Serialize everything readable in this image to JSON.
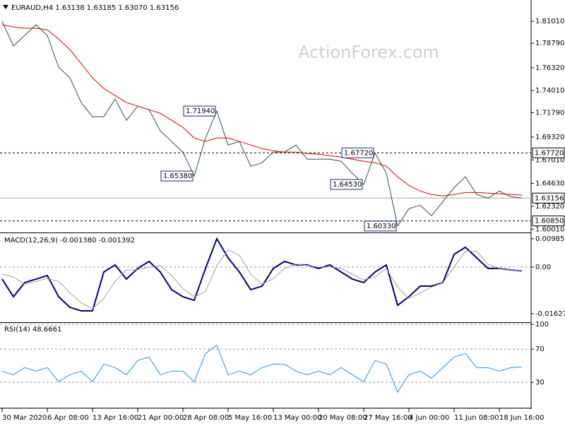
{
  "chart_data": [
    {
      "type": "line",
      "title": "EURAUD,H4  1.63138 1.63185 1.63070 1.63156",
      "watermark": "ActionForex.com",
      "categories": [
        "30 Mar 2020",
        null,
        null,
        null,
        "6 Apr 08:00",
        null,
        null,
        null,
        "13 Apr 16:00",
        null,
        null,
        null,
        "21 Apr 00:00",
        null,
        null,
        null,
        "28 Apr 08:00",
        null,
        null,
        null,
        "5 May 16:00",
        null,
        null,
        null,
        "13 May 00:00",
        null,
        null,
        null,
        "20 May 08:00",
        null,
        null,
        null,
        "27 May 16:00",
        null,
        null,
        null,
        "4 Jun 00:00",
        null,
        null,
        null,
        "11 Jun 08:00",
        null,
        null,
        null,
        "18 Jun 16:00",
        null,
        null
      ],
      "series": [
        {
          "color": "#2f4f4f",
          "values": [
            1.8101,
            1.7851,
            1.7958,
            1.8065,
            1.7958,
            1.7637,
            1.753,
            1.728,
            1.7137,
            1.7137,
            1.7315,
            1.7101,
            1.7244,
            1.7208,
            1.6994,
            1.6887,
            1.678,
            1.6538,
            1.6922,
            1.7194,
            1.6851,
            1.6887,
            1.6637,
            1.6672,
            1.678,
            1.678,
            1.6851,
            1.6708,
            1.6708,
            1.6708,
            1.6687,
            1.6565,
            1.6453,
            1.6772,
            1.6565,
            1.6033,
            1.6208,
            1.6244,
            1.6137,
            1.628,
            1.6422,
            1.653,
            1.6351,
            1.6315,
            1.6387,
            1.633,
            1.63156
          ]
        },
        {
          "color": "#e00000",
          "values": [
            1.8065,
            1.8044,
            1.803,
            1.803,
            1.8015,
            1.7922,
            1.7815,
            1.7672,
            1.753,
            1.7422,
            1.7351,
            1.728,
            1.7244,
            1.7208,
            1.7172,
            1.7101,
            1.703,
            1.6922,
            1.6887,
            1.6922,
            1.6922,
            1.6887,
            1.6851,
            1.6815,
            1.6794,
            1.678,
            1.678,
            1.6765,
            1.6758,
            1.6744,
            1.673,
            1.6708,
            1.6687,
            1.6672,
            1.6637,
            1.653,
            1.6444,
            1.6387,
            1.6351,
            1.6337,
            1.6351,
            1.6372,
            1.6372,
            1.6365,
            1.6358,
            1.6351,
            1.6344
          ]
        }
      ],
      "ylim": [
        1.5975,
        1.828
      ],
      "yticks": [
        {
          "value": 1.8101,
          "label": "1.81010"
        },
        {
          "value": 1.7879,
          "label": "1.78790"
        },
        {
          "value": 1.7632,
          "label": "1.76320"
        },
        {
          "value": 1.7401,
          "label": "1.74010"
        },
        {
          "value": 1.7179,
          "label": "1.71790"
        },
        {
          "value": 1.6932,
          "label": "1.69320"
        },
        {
          "value": 1.6701,
          "label": "1.67010"
        },
        {
          "value": 1.6463,
          "label": "1.64630"
        },
        {
          "value": 1.6232,
          "label": "1.62320"
        },
        {
          "value": 1.6001,
          "label": "1.60010"
        }
      ],
      "levels": [
        {
          "value": 1.6772,
          "label": "1.67720",
          "style": "dashed"
        },
        {
          "value": 1.63156,
          "label": "1.63156",
          "style": "solid"
        },
        {
          "value": 1.6085,
          "label": "1.60850",
          "style": "dashed"
        }
      ],
      "annotations": [
        {
          "value": 1.7194,
          "label": "1.71940"
        },
        {
          "value": 1.6538,
          "label": "1.65380"
        },
        {
          "value": 1.6453,
          "label": "1.64530"
        },
        {
          "value": 1.6772,
          "label": "1.67720"
        },
        {
          "value": 1.6033,
          "label": "1.60330"
        }
      ]
    },
    {
      "type": "line",
      "title": "MACD(12,26,9) -0.001380 -0.001392",
      "series": [
        {
          "color": "#00007f",
          "width": 2,
          "values": [
            -0.00419,
            -0.01035,
            -0.00542,
            -0.00419,
            -0.00296,
            -0.01035,
            -0.01404,
            -0.01527,
            -0.01527,
            -0.00172,
            0.00074,
            -0.00419,
            -0.00049,
            0.00197,
            -0.00172,
            -0.00788,
            -0.01035,
            -0.01158,
            -0.00049,
            0.00985,
            0.0032,
            -0.00172,
            -0.00788,
            -0.00665,
            -0.00049,
            0.00197,
            0.00074,
            0.00074,
            -0.00049,
            0.00074,
            -0.00172,
            -0.00419,
            -0.00542,
            -0.00172,
            0.00074,
            -0.0133,
            -0.01035,
            -0.00665,
            -0.00665,
            -0.00542,
            0.00443,
            0.0069,
            0.0032,
            -0.00049,
            -0.00049,
            -0.00099,
            -0.00138
          ]
        },
        {
          "color": "#a0a0a0",
          "width": 1,
          "values": [
            -0.0025,
            -0.0035,
            -0.006,
            -0.005,
            -0.004,
            -0.005,
            -0.009,
            -0.0125,
            -0.0145,
            -0.011,
            -0.005,
            -0.001,
            -0.001,
            0,
            0.0005,
            -0.003,
            -0.0075,
            -0.0105,
            -0.0085,
            0.0005,
            0.006,
            0.004,
            -0.0025,
            -0.006,
            -0.004,
            -0.0005,
            0.001,
            0.0005,
            0,
            0,
            -0.0005,
            -0.0025,
            -0.0045,
            -0.0035,
            -0.0005,
            -0.007,
            -0.011,
            -0.009,
            -0.007,
            -0.0055,
            0,
            0.0055,
            0.0055,
            0.001,
            -0.0005,
            -0.001,
            -0.001392
          ]
        }
      ],
      "ylim": [
        -0.019,
        0.0113
      ],
      "yticks": [
        0.009855,
        {
          "value": 0,
          "label": "0.00"
        },
        -0.01627
      ],
      "zero_line": true
    },
    {
      "type": "line",
      "title": "RSI(14) 48.6661",
      "series": [
        {
          "color": "#1e90ff",
          "width": 1,
          "values": [
            43.4,
            39.1,
            47.7,
            43.4,
            47.7,
            30.6,
            39.1,
            43.4,
            30.6,
            51.9,
            47.7,
            39.1,
            56.2,
            60.4,
            39.1,
            43.4,
            43.4,
            30.6,
            64.7,
            74.9,
            39.1,
            43.4,
            39.1,
            47.7,
            51.9,
            51.9,
            43.4,
            39.1,
            43.4,
            39.1,
            47.7,
            39.1,
            30.6,
            56.2,
            51.9,
            17.9,
            39.1,
            43.4,
            34.9,
            47.7,
            60.4,
            64.7,
            47.7,
            47.7,
            43.4,
            47.7,
            48.6661
          ]
        }
      ],
      "ylim": [
        0,
        100
      ],
      "yticks": [
        100,
        70,
        30
      ],
      "grid": true
    }
  ]
}
